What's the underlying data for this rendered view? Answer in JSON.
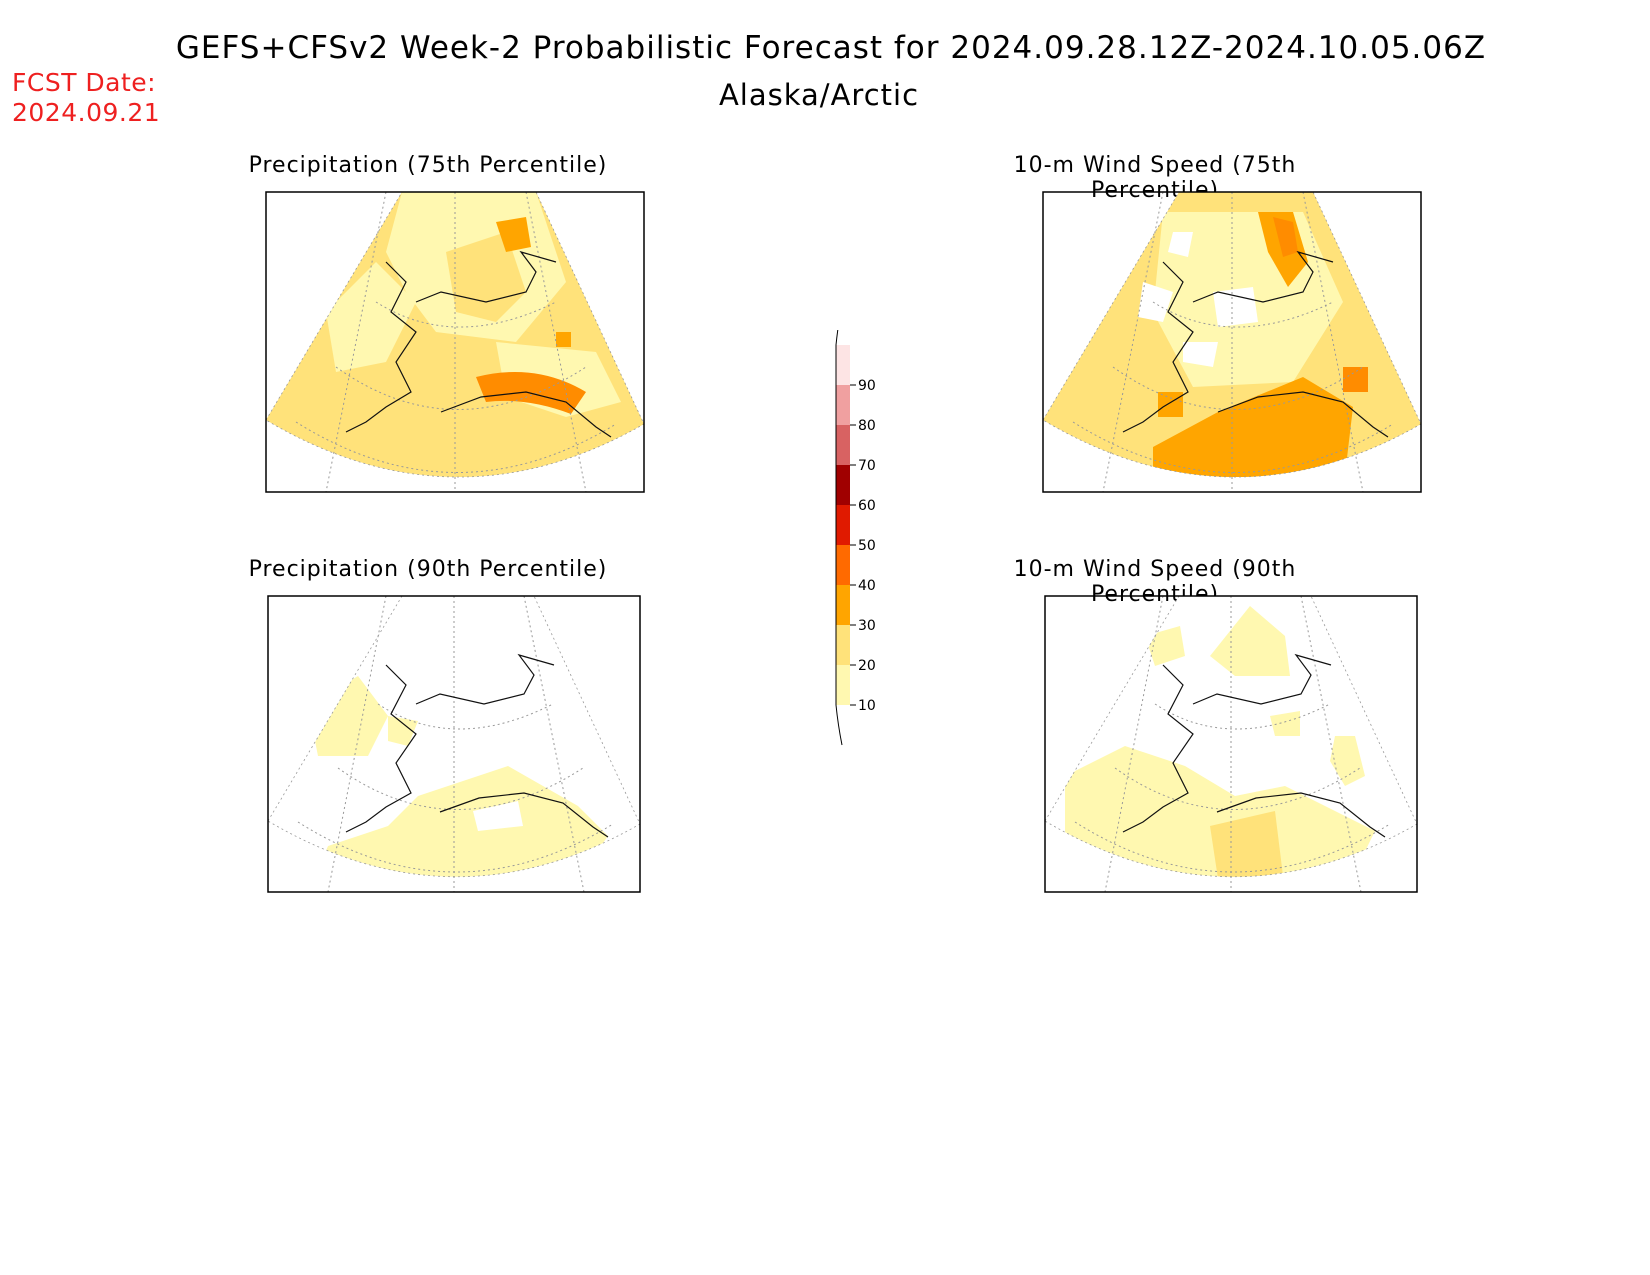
{
  "header": {
    "title": "GEFS+CFSv2 Week-2 Probabilistic Forecast for 2024.09.28.12Z-2024.10.05.06Z",
    "subtitle": "Alaska/Arctic",
    "fcst_label": "FCST Date:",
    "fcst_date": "2024.09.21"
  },
  "panels": [
    {
      "id": "precip75",
      "title": "Precipitation (75th Percentile)"
    },
    {
      "id": "wind75",
      "title": "10-m Wind Speed (75th Percentile)"
    },
    {
      "id": "precip90",
      "title": "Precipitation (90th Percentile)"
    },
    {
      "id": "wind90",
      "title": "10-m Wind Speed (90th Percentile)"
    }
  ],
  "legend": {
    "levels": [
      {
        "label": "10",
        "color": "#fff8b0"
      },
      {
        "label": "20",
        "color": "#ffe27a"
      },
      {
        "label": "30",
        "color": "#ffa500"
      },
      {
        "label": "40",
        "color": "#ff6a00"
      },
      {
        "label": "50",
        "color": "#e01a00"
      },
      {
        "label": "60",
        "color": "#a00000"
      },
      {
        "label": "70",
        "color": "#d86262"
      },
      {
        "label": "80",
        "color": "#f0a0a0"
      },
      {
        "label": "90",
        "color": "#fde4e4"
      }
    ]
  },
  "colors": {
    "fcst_text": "#ee2020",
    "light_yellow": "#fff8b0",
    "yellow": "#ffe27a",
    "orange": "#ffa500",
    "dark_orange": "#ff6a00"
  }
}
